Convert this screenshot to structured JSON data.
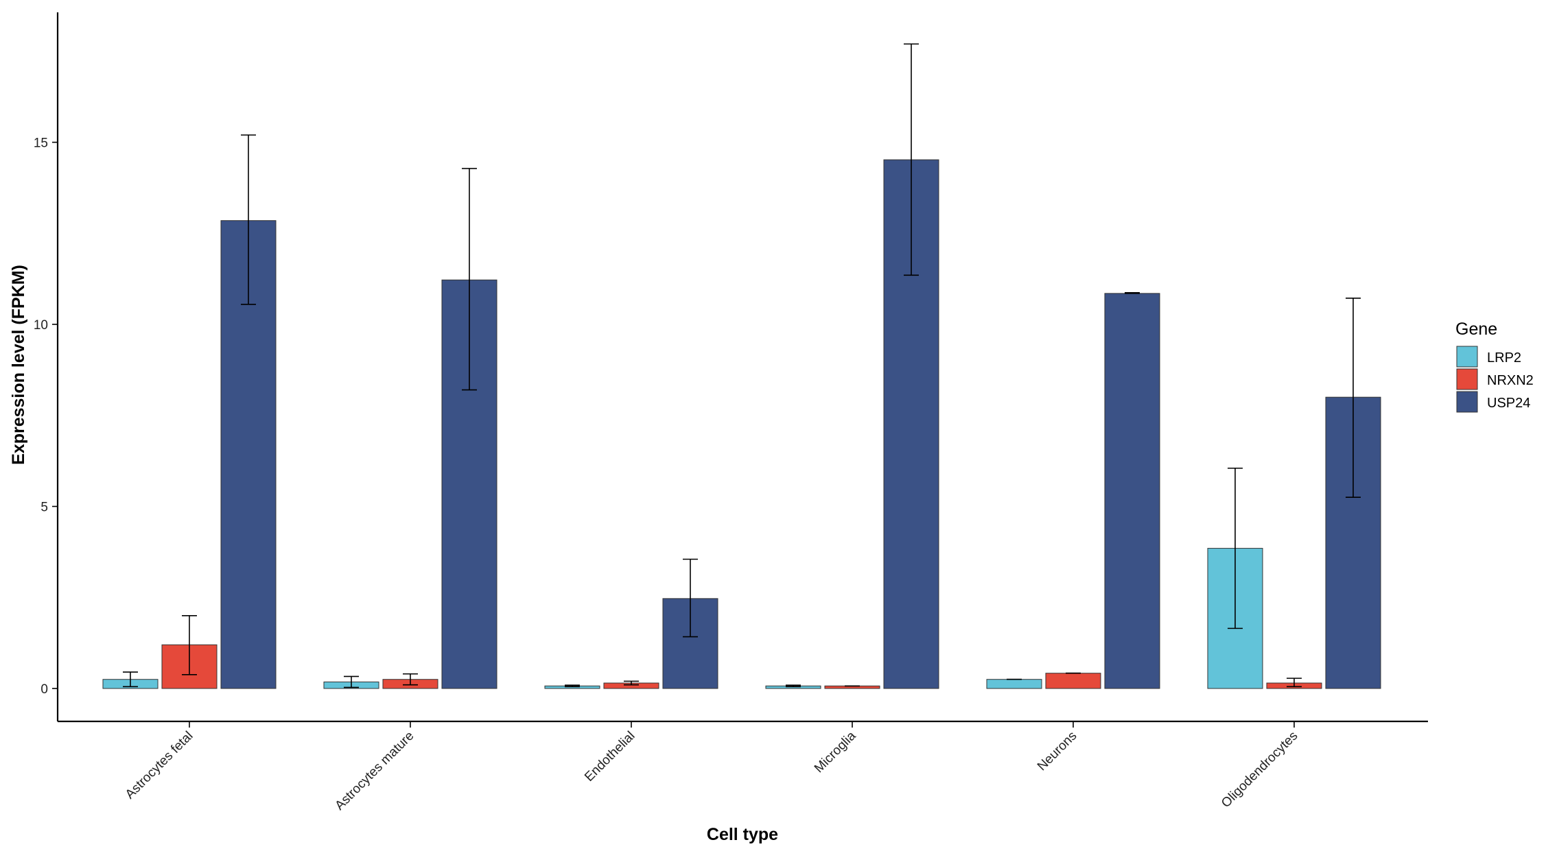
{
  "chart_data": {
    "type": "bar",
    "title": "",
    "xlabel": "Cell type",
    "ylabel": "Expression level (FPKM)",
    "ylim": [
      -0.9,
      18.5
    ],
    "yticks": [
      0,
      5,
      10,
      15
    ],
    "grid": false,
    "legend": {
      "title": "Gene",
      "placement": "right"
    },
    "categories": [
      "Astrocytes fetal",
      "Astrocytes mature",
      "Endothelial",
      "Microglia",
      "Neurons",
      "Oligodendrocytes"
    ],
    "series": [
      {
        "name": "LRP2",
        "color": "#62c3d9",
        "values": [
          0.25,
          0.18,
          0.07,
          0.07,
          0.25,
          3.85
        ],
        "err_low": [
          0.05,
          0.03,
          0.05,
          0.05,
          0.25,
          1.65
        ],
        "err_high": [
          0.45,
          0.33,
          0.09,
          0.09,
          0.25,
          6.05
        ]
      },
      {
        "name": "NRXN2",
        "color": "#e5493a",
        "values": [
          1.2,
          0.25,
          0.15,
          0.07,
          0.42,
          0.15
        ],
        "err_low": [
          0.38,
          0.1,
          0.1,
          0.07,
          0.42,
          0.05
        ],
        "err_high": [
          2.0,
          0.4,
          0.2,
          0.07,
          0.42,
          0.28
        ]
      },
      {
        "name": "USP24",
        "color": "#3b5286",
        "values": [
          12.85,
          11.22,
          2.47,
          14.52,
          10.85,
          8.0
        ],
        "err_low": [
          10.55,
          8.2,
          1.42,
          11.35,
          10.85,
          5.25
        ],
        "err_high": [
          15.2,
          14.28,
          3.55,
          17.7,
          10.87,
          10.72
        ]
      }
    ]
  }
}
